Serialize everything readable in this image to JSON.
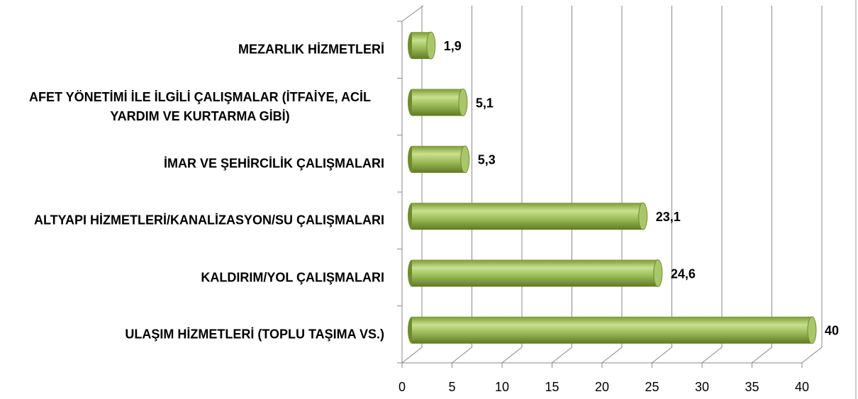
{
  "chart_data": {
    "type": "bar3d_horizontal",
    "categories": [
      "MEZARLIK HİZMETLERİ",
      "AFET YÖNETİMİ İLE İLGİLİ ÇALIŞMALAR (İTFAİYE, ACİL YARDIM VE KURTARMA GİBİ)",
      "İMAR VE ŞEHİRCİLİK ÇALIŞMALARI",
      "ALTYAPI HİZMETLERİ/KANALİZASYON/SU ÇALIŞMALARI",
      "KALDIRIM/YOL ÇALIŞMALARI",
      "ULAŞIM HİZMETLERİ (TOPLU TAŞIMA VS.)"
    ],
    "values": [
      1.9,
      5.1,
      5.3,
      23.1,
      24.6,
      40
    ],
    "value_labels": [
      "1,9",
      "5,1",
      "5,3",
      "23,1",
      "24,6",
      "40"
    ],
    "color": "#9bbb59",
    "xlim": [
      0,
      40
    ],
    "xticks": [
      0,
      5,
      10,
      15,
      20,
      25,
      30,
      35,
      40
    ],
    "grid": true
  }
}
